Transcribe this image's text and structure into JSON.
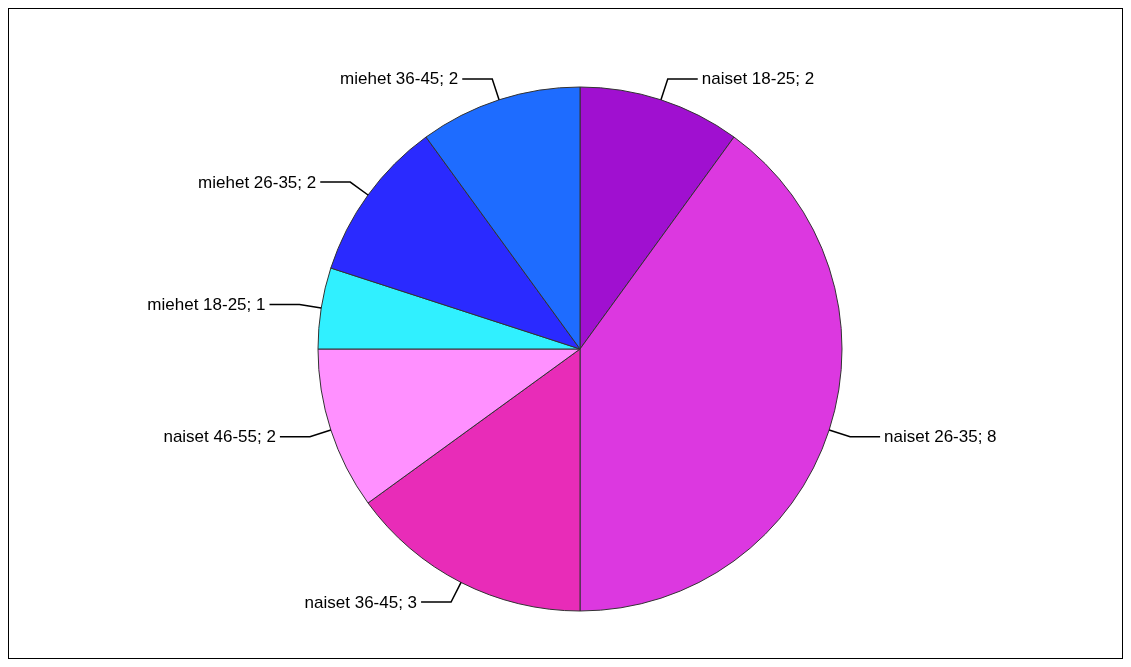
{
  "chart_data": {
    "type": "pie",
    "categories": [
      "naiset 18-25; 2",
      "naiset 26-35; 8",
      "naiset 36-45; 3",
      "naiset 46-55; 2",
      "miehet 18-25; 1",
      "miehet 26-35; 2",
      "miehet 36-45; 2"
    ],
    "values": [
      10,
      40,
      15,
      10,
      5,
      10,
      10
    ],
    "colors": [
      "#a010d0",
      "#dc38e0",
      "#e82cb8",
      "#ff90ff",
      "#30f0ff",
      "#2a2aff",
      "#1e6cff"
    ],
    "legend": false
  }
}
